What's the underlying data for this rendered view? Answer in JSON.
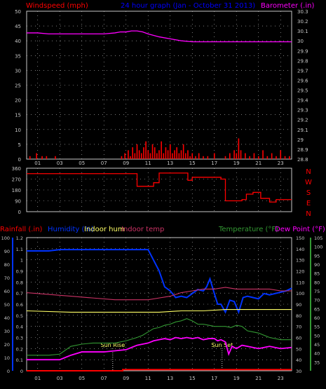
{
  "header": {
    "left_label": "Windspeed (mph)",
    "center_label": "24 hour graph (Jan - October 31 2013)",
    "right_label": "Barometer (.in)"
  },
  "colors": {
    "background": "#000000",
    "grid": "#c8c8c8",
    "axis_text": "#c8c8c8",
    "wind": "#ff0000",
    "barometer": "#ff00ff",
    "direction": "#ff0000",
    "rain": "#ff0000",
    "humidity": "#0033ff",
    "indoor_hum": "#ffff66",
    "indoor_temp": "#cc3366",
    "temperature": "#339933",
    "dew_point": "#ff00ff",
    "label_wind": "#ff0000",
    "label_baro": "#ff00ff",
    "label_center": "#0000ff"
  },
  "chart_data": [
    {
      "type": "bar",
      "name": "wind_barometer",
      "x_ticks": [
        "01",
        "03",
        "05",
        "07",
        "09",
        "11",
        "13",
        "15",
        "17",
        "19",
        "21",
        "23"
      ],
      "x_range": [
        0,
        24
      ],
      "y_left": {
        "label": "Windspeed (mph)",
        "range": [
          0,
          50
        ],
        "ticks": [
          0,
          5,
          10,
          15,
          20,
          25,
          30,
          35,
          40,
          45,
          50
        ]
      },
      "y_right": {
        "label": "Barometer (.in)",
        "range": [
          28.8,
          30.3
        ],
        "ticks": [
          "28.8",
          "28.9",
          "29",
          "29.1",
          "29.2",
          "29.3",
          "29.4",
          "29.5",
          "29.6",
          "29.7",
          "29.8",
          "29.9",
          "30",
          "30.1",
          "30.2",
          "30.3"
        ]
      },
      "series": [
        {
          "name": "Barometer",
          "axis": "right",
          "type": "line",
          "x": [
            0,
            1,
            2,
            3,
            4,
            5,
            6,
            7,
            8,
            8.5,
            9,
            9.5,
            10,
            10.5,
            11,
            12,
            13,
            14,
            15,
            16,
            17,
            18,
            19,
            20,
            21,
            22,
            23,
            24
          ],
          "values": [
            30.08,
            30.08,
            30.07,
            30.07,
            30.07,
            30.07,
            30.07,
            30.07,
            30.08,
            30.09,
            30.09,
            30.1,
            30.1,
            30.09,
            30.07,
            30.04,
            30.02,
            30.0,
            29.99,
            29.99,
            29.99,
            29.99,
            29.99,
            29.99,
            29.99,
            29.99,
            29.99,
            29.99
          ]
        },
        {
          "name": "Windspeed",
          "axis": "left",
          "type": "bar",
          "x": [
            0.3,
            0.9,
            1.4,
            1.8,
            2.6,
            8.6,
            8.9,
            9.2,
            9.4,
            9.6,
            9.8,
            10.0,
            10.2,
            10.4,
            10.6,
            10.8,
            11.0,
            11.2,
            11.4,
            11.6,
            11.8,
            12.0,
            12.2,
            12.4,
            12.6,
            12.8,
            13.0,
            13.2,
            13.4,
            13.6,
            13.8,
            14.0,
            14.2,
            14.4,
            14.6,
            14.8,
            15.0,
            15.3,
            15.6,
            16.0,
            16.4,
            17.0,
            18.0,
            18.4,
            18.8,
            19.0,
            19.2,
            19.4,
            19.8,
            20.2,
            20.6,
            21.0,
            21.4,
            21.8,
            22.2,
            22.6,
            23.0,
            23.4,
            23.8
          ],
          "values": [
            1,
            2,
            1,
            1,
            1,
            1,
            2,
            3,
            1,
            4,
            2,
            5,
            3,
            2,
            4,
            6,
            3,
            2,
            5,
            4,
            2,
            3,
            6,
            2,
            4,
            3,
            5,
            2,
            3,
            4,
            2,
            3,
            5,
            2,
            3,
            1,
            2,
            1,
            2,
            1,
            1,
            2,
            1,
            2,
            3,
            2,
            7,
            3,
            2,
            1,
            2,
            1,
            3,
            1,
            2,
            1,
            3,
            1,
            1
          ]
        }
      ]
    },
    {
      "type": "line",
      "name": "wind_direction",
      "x_ticks": [
        "01",
        "03",
        "05",
        "07",
        "09",
        "11",
        "13",
        "15",
        "17",
        "19",
        "21",
        "23"
      ],
      "x_range": [
        0,
        24
      ],
      "y_left": {
        "range": [
          0,
          360
        ],
        "ticks": [
          "0",
          "90",
          "180",
          "270",
          "360"
        ]
      },
      "compass_labels": [
        "N",
        "W",
        "S",
        "E",
        "N"
      ],
      "series": [
        {
          "name": "Wind direction",
          "x": [
            0,
            10.0,
            10.0,
            11.5,
            11.5,
            12.0,
            12.0,
            14.6,
            14.6,
            15.0,
            15.0,
            17.6,
            17.6,
            18.0,
            18.0,
            19.5,
            19.5,
            19.9,
            19.9,
            20.5,
            20.5,
            21.2,
            21.2,
            22.0,
            22.0,
            22.6,
            22.6,
            24
          ],
          "values": [
            315,
            315,
            210,
            210,
            240,
            240,
            320,
            320,
            260,
            260,
            285,
            285,
            270,
            270,
            90,
            90,
            100,
            100,
            145,
            145,
            160,
            160,
            110,
            110,
            80,
            80,
            100,
            100
          ]
        }
      ]
    },
    {
      "type": "line",
      "name": "rain_humidity_temperature",
      "legend": [
        "Rainfall (.in)",
        "Humidity (%)",
        "Indoor hum",
        "Indoor temp",
        "Temperature (°F)",
        "Dew Point (°F)"
      ],
      "x_ticks": [
        "01",
        "03",
        "05",
        "07",
        "09",
        "11",
        "13",
        "15",
        "17",
        "19",
        "21",
        "23"
      ],
      "x_range": [
        0,
        24
      ],
      "y_rain": {
        "label": "Rainfall (.in)",
        "range": [
          0,
          1.2
        ],
        "ticks": [
          "0",
          "0.1",
          "0.2",
          "0.3",
          "0.4",
          "0.5",
          "0.6",
          "0.7",
          "0.8",
          "0.9",
          "1",
          "1.1",
          "1.2"
        ]
      },
      "y_hum": {
        "range": [
          0,
          100
        ],
        "ticks": [
          "0",
          "10",
          "20",
          "30",
          "40",
          "50",
          "60",
          "70",
          "80",
          "90",
          "100"
        ]
      },
      "y_temp_inner": {
        "range": [
          30,
          150
        ],
        "ticks": [
          "30",
          "40",
          "50",
          "60",
          "70",
          "80",
          "90",
          "100",
          "110",
          "120",
          "130",
          "140",
          "150"
        ]
      },
      "y_temp_outer": {
        "range": [
          30,
          105
        ],
        "ticks": [
          "35",
          "40",
          "45",
          "50",
          "55",
          "60",
          "65",
          "70",
          "75",
          "80",
          "85",
          "90",
          "95",
          "100",
          "105"
        ]
      },
      "annotations": [
        {
          "text": "Sun Rise",
          "x": 7.8
        },
        {
          "text": "Sun Set",
          "x": 17.7
        }
      ],
      "series": [
        {
          "name": "Humidity (%)",
          "axis": "hum",
          "x": [
            0,
            2,
            3,
            4,
            6,
            8,
            9,
            10,
            11,
            12,
            12.5,
            13,
            13.5,
            14,
            14.5,
            15,
            15.5,
            16,
            16.3,
            16.6,
            17,
            17.3,
            17.6,
            18,
            18.4,
            18.8,
            19.2,
            19.6,
            20,
            20.5,
            21,
            21.5,
            22,
            22.5,
            23,
            23.5,
            24
          ],
          "values": [
            90,
            90,
            91,
            91,
            91,
            91,
            91,
            91,
            91,
            75,
            63,
            60,
            55,
            56,
            55,
            58,
            61,
            60,
            63,
            69,
            58,
            50,
            50,
            44,
            53,
            52,
            44,
            55,
            56,
            55,
            54,
            58,
            57,
            58,
            59,
            60,
            62
          ]
        },
        {
          "name": "Indoor hum",
          "axis": "hum",
          "x": [
            0,
            4,
            8,
            10,
            12,
            14,
            16,
            18,
            20,
            22,
            24
          ],
          "values": [
            45,
            44,
            44,
            44,
            44,
            45,
            45,
            46,
            46,
            46,
            46
          ]
        },
        {
          "name": "Indoor temp",
          "axis": "temp_outer",
          "x": [
            0,
            2,
            4,
            6,
            8,
            9,
            10,
            11,
            12,
            13,
            14,
            15,
            16,
            17,
            18,
            19,
            20,
            21,
            22,
            23,
            24
          ],
          "values": [
            74,
            73,
            72,
            71,
            70,
            70,
            70,
            70,
            71,
            72,
            74,
            75,
            76,
            76,
            77,
            76,
            76,
            76,
            76,
            75,
            75
          ]
        },
        {
          "name": "Temperature (°F)",
          "axis": "temp_inner",
          "x": [
            0,
            1,
            2,
            3,
            4,
            5,
            6,
            7,
            8,
            9,
            10,
            10.5,
            11,
            11.5,
            12,
            12.5,
            13,
            13.5,
            14,
            14.5,
            15,
            15.5,
            16,
            16.5,
            17,
            17.5,
            18,
            18.5,
            19,
            19.5,
            20,
            20.5,
            21,
            22,
            23,
            24
          ],
          "values": [
            44,
            44,
            44,
            45,
            52,
            54,
            55,
            55,
            55,
            57,
            60,
            62,
            65,
            68,
            69,
            71,
            72,
            74,
            75,
            77,
            75,
            72,
            72,
            71,
            70,
            70,
            70,
            69,
            71,
            70,
            66,
            65,
            64,
            60,
            58,
            58
          ]
        },
        {
          "name": "Dew Point (°F)",
          "axis": "temp_inner",
          "x": [
            0,
            1,
            2,
            3,
            4,
            5,
            6,
            7,
            8,
            9,
            9.5,
            10,
            10.5,
            11,
            11.5,
            12,
            12.5,
            13,
            13.5,
            14,
            14.5,
            15,
            15.5,
            16,
            16.5,
            17,
            17.3,
            17.6,
            18,
            18.3,
            18.6,
            19,
            19.5,
            20,
            21,
            22,
            23,
            24
          ],
          "values": [
            40,
            40,
            40,
            40,
            44,
            47,
            47,
            47,
            48,
            49,
            51,
            53,
            54,
            55,
            57,
            58,
            59,
            58,
            60,
            59,
            60,
            59,
            60,
            58,
            59,
            59,
            57,
            58,
            56,
            45,
            52,
            50,
            53,
            52,
            50,
            52,
            50,
            51
          ]
        },
        {
          "name": "Rainfall (.in)",
          "axis": "rain",
          "x": [
            0,
            8.7,
            8.7,
            24
          ],
          "values": [
            0,
            0,
            0.01,
            0.01
          ]
        }
      ]
    }
  ]
}
